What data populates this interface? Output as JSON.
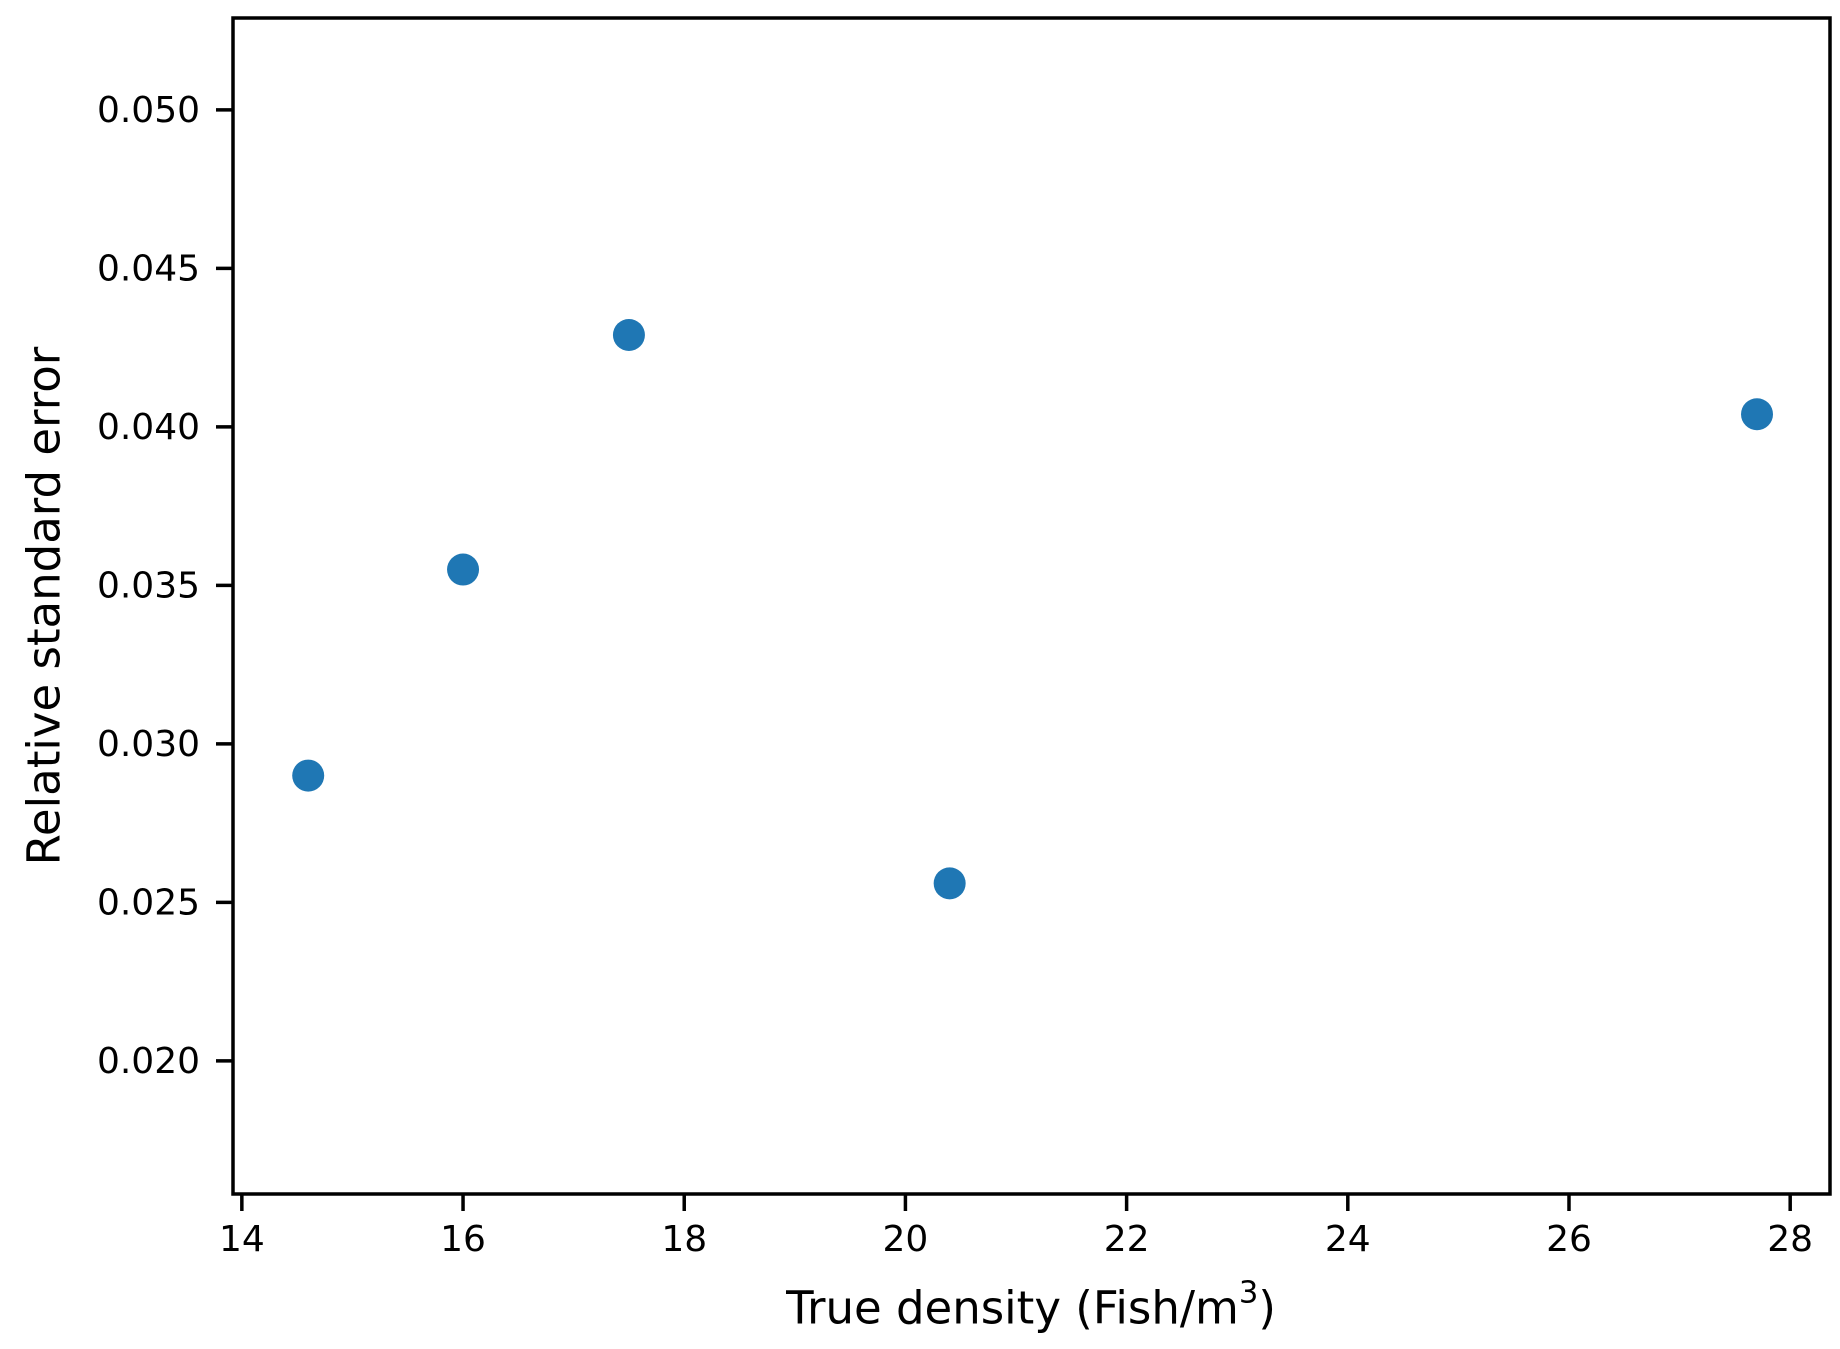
{
  "figure": {
    "background": "#ffffff",
    "frame_color": "#000000",
    "tick_color": "#000000",
    "text_color": "#000000"
  },
  "chart_data": {
    "type": "scatter",
    "title": "",
    "xlabel_prefix": "True density (Fish/m",
    "xlabel_sup": "3",
    "xlabel_suffix": ")",
    "ylabel": "Relative standard error",
    "points": [
      {
        "x": 14.6,
        "y": 0.029
      },
      {
        "x": 16.0,
        "y": 0.0355
      },
      {
        "x": 17.5,
        "y": 0.0429
      },
      {
        "x": 20.4,
        "y": 0.0256
      },
      {
        "x": 27.7,
        "y": 0.0404
      }
    ],
    "xticks": [
      "14",
      "16",
      "18",
      "20",
      "22",
      "24",
      "26",
      "28"
    ],
    "yticks": [
      "0.020",
      "0.025",
      "0.030",
      "0.035",
      "0.040",
      "0.045",
      "0.050"
    ],
    "xlim": [
      13.92,
      28.36
    ],
    "ylim": [
      0.0158,
      0.0529
    ],
    "grid": false,
    "legend": "none",
    "marker_color": "#1f77b4",
    "marker_radius": 16
  }
}
